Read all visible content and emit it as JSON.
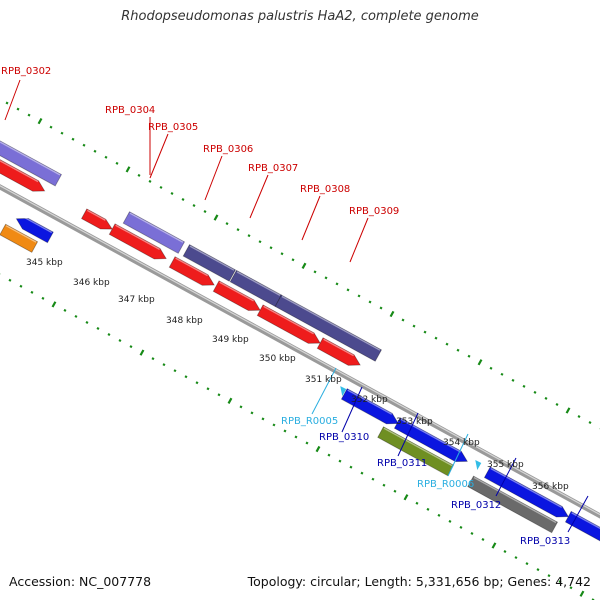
{
  "title": "Rhodopseudomonas palustris HaA2, complete genome",
  "footer": {
    "accession": "Accession: NC_007778",
    "summary": "Topology: circular; Length: 5,331,656 bp; Genes: 4,742"
  },
  "colors": {
    "red": "#ee1c1c",
    "blue": "#0b16e0",
    "lavender": "#7a6fd6",
    "dark_slate": "#4c4a8e",
    "olive": "#6f8f22",
    "orange": "#f08a14",
    "gray": "#6a6a6a",
    "cyan": "#33bde6",
    "tick_green": "#178a17",
    "label_red": "#cc0000",
    "label_blue": "#0000aa",
    "label_cyan": "#2aaee0"
  },
  "genes": [
    {
      "name": "RPB_0302",
      "label_color": "red"
    },
    {
      "name": "RPB_0304",
      "label_color": "red"
    },
    {
      "name": "RPB_0305",
      "label_color": "red"
    },
    {
      "name": "RPB_0306",
      "label_color": "red"
    },
    {
      "name": "RPB_0307",
      "label_color": "red"
    },
    {
      "name": "RPB_0308",
      "label_color": "red"
    },
    {
      "name": "RPB_0309",
      "label_color": "red"
    },
    {
      "name": "RPB_R0005",
      "label_color": "cyan"
    },
    {
      "name": "RPB_0310",
      "label_color": "blue"
    },
    {
      "name": "RPB_0311",
      "label_color": "blue"
    },
    {
      "name": "RPB_R0006",
      "label_color": "cyan"
    },
    {
      "name": "RPB_0312",
      "label_color": "blue"
    },
    {
      "name": "RPB_0313",
      "label_color": "blue"
    }
  ],
  "scale_labels": [
    "345 kbp",
    "346 kbp",
    "347 kbp",
    "348 kbp",
    "349 kbp",
    "350 kbp",
    "351 kbp",
    "352 kbp",
    "353 kbp",
    "354 kbp",
    "355 kbp",
    "356 kbp"
  ]
}
